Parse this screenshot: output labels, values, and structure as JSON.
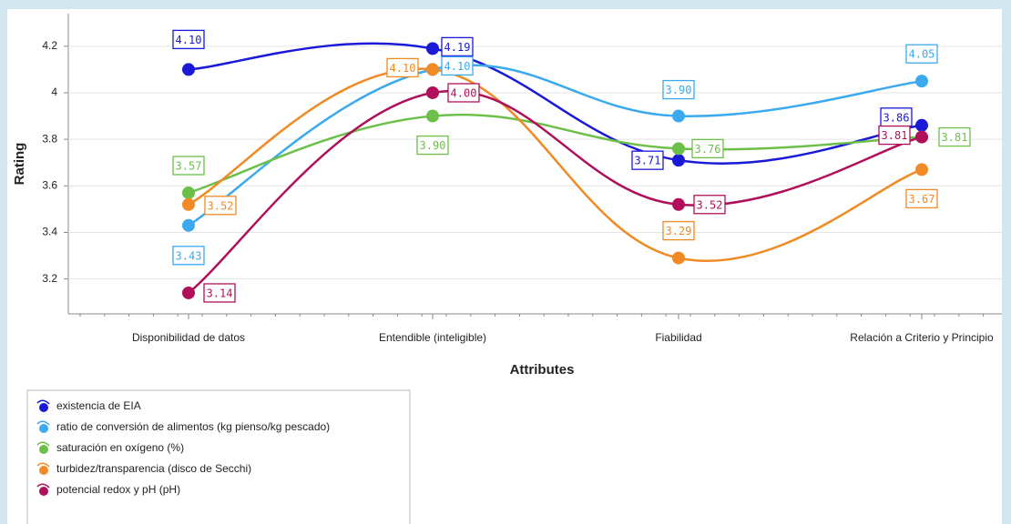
{
  "chart_data": {
    "type": "line",
    "x_label": "Attributes",
    "y_label": "Rating",
    "categories": [
      "Disponibilidad de datos",
      "Entendible (inteligible)",
      "Fiabilidad",
      "Relación a Criterio y Principio"
    ],
    "ylim": [
      3.05,
      4.34
    ],
    "yticks": [
      3.2,
      3.4,
      3.6,
      3.8,
      4,
      4.2
    ],
    "grid": true,
    "smooth": true,
    "series": [
      {
        "name": "existencia de EIA",
        "color": "#1a1ad6",
        "values": [
          4.1,
          4.19,
          3.71,
          3.86
        ],
        "value_labels": [
          "4.10",
          "4.19",
          "3.71",
          "3.86"
        ]
      },
      {
        "name": "ratio de conversión de alimentos (kg pienso/kg pescado)",
        "color": "#3ba9ee",
        "values": [
          3.43,
          4.1,
          3.9,
          4.05
        ],
        "value_labels": [
          "3.43",
          "4.10",
          "3.90",
          "4.05"
        ]
      },
      {
        "name": "saturación en oxígeno (%)",
        "color": "#6cc04a",
        "values": [
          3.57,
          3.9,
          3.76,
          3.81
        ],
        "value_labels": [
          "3.57",
          "3.90",
          "3.76",
          "3.81"
        ]
      },
      {
        "name": "turbidez/transparencia (disco de Secchi)",
        "color": "#f08a24",
        "values": [
          3.52,
          4.1,
          3.29,
          3.67
        ],
        "value_labels": [
          "3.52",
          "4.10",
          "3.29",
          "3.67"
        ]
      },
      {
        "name": "potencial redox y pH (pH)",
        "color": "#b0105a",
        "values": [
          3.14,
          4.0,
          3.52,
          3.81
        ],
        "value_labels": [
          "3.14",
          "4.00",
          "3.52",
          "3.81"
        ]
      }
    ]
  }
}
